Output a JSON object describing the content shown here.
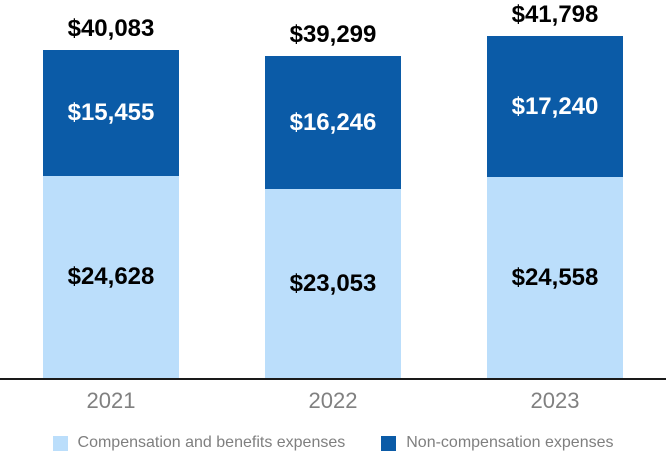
{
  "chart_data": {
    "type": "bar",
    "stacked": true,
    "title": "",
    "xlabel": "",
    "ylabel": "",
    "grid": false,
    "legend_position": "bottom",
    "categories": [
      "2021",
      "2022",
      "2023"
    ],
    "series": [
      {
        "name": "Compensation and benefits expenses",
        "color": "#BBDEFB",
        "values": [
          24628,
          23053,
          24558
        ],
        "labels": [
          "$24,628",
          "$23,053",
          "$24,558"
        ]
      },
      {
        "name": "Non-compensation expenses",
        "color": "#0B5BA7",
        "values": [
          15455,
          16246,
          17240
        ],
        "labels": [
          "$15,455",
          "$16,246",
          "$17,240"
        ]
      }
    ],
    "totals": [
      40083,
      39299,
      41798
    ],
    "total_labels": [
      "$40,083",
      "$39,299",
      "$41,798"
    ]
  },
  "colors": {
    "background": "#FFFFFF",
    "axis_line": "#1A1A1A",
    "total_label_text": "#000000",
    "dark_segment_text": "#FFFFFF",
    "light_segment_text": "#000000",
    "year_label_text": "#808080",
    "legend_text": "#7F7F7F"
  }
}
